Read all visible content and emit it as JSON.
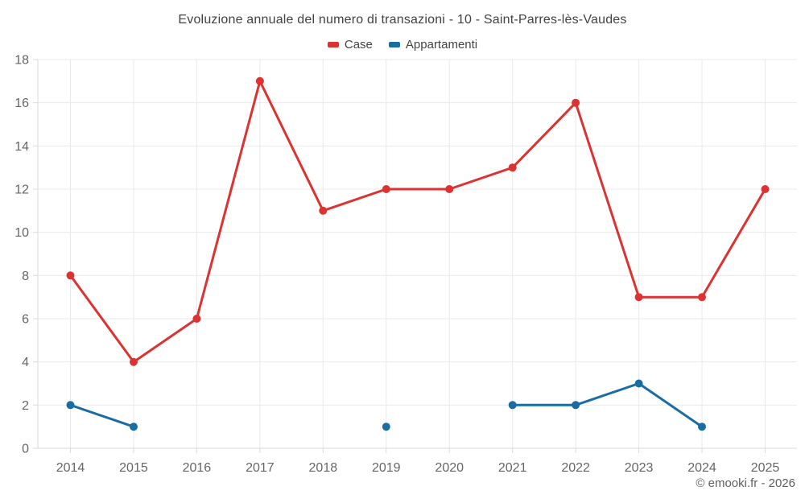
{
  "page": {
    "copyright": "© emooki.fr - 2026"
  },
  "chart_data": {
    "type": "line",
    "title": "Evoluzione annuale del numero di transazioni - 10 - Saint-Parres-lès-Vaudes",
    "categories": [
      "2014",
      "2015",
      "2016",
      "2017",
      "2018",
      "2019",
      "2020",
      "2021",
      "2022",
      "2023",
      "2024",
      "2025"
    ],
    "series": [
      {
        "name": "Case",
        "color": "#dc3232",
        "values": [
          8,
          4,
          6,
          17,
          11,
          12,
          12,
          13,
          16,
          7,
          7,
          12
        ]
      },
      {
        "name": "Appartamenti",
        "color": "#1a6da3",
        "values": [
          2,
          1,
          null,
          null,
          null,
          1,
          null,
          2,
          2,
          3,
          1,
          null
        ]
      }
    ],
    "ylim": [
      0,
      18
    ],
    "ytick_step": 2,
    "grid": true,
    "legend_position": "top",
    "xlabel": "",
    "ylabel": ""
  },
  "colors": {
    "grid": "#e9e9e9",
    "axis": "#dadada",
    "tick_label": "#666666"
  }
}
